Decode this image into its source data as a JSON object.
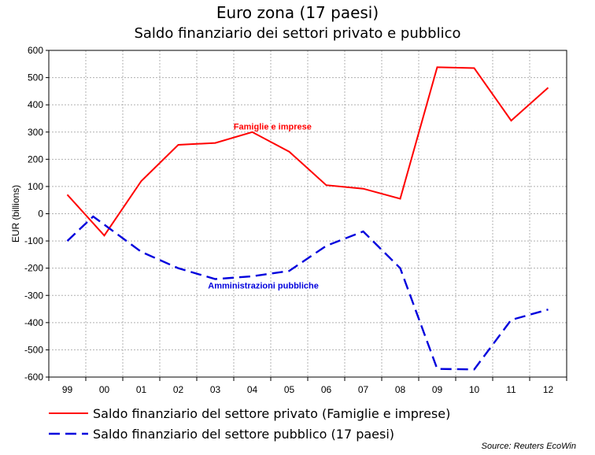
{
  "chart_data": {
    "type": "line",
    "title": "Euro zona (17 paesi)",
    "subtitle": "Saldo finanziario dei settori privato e pubblico",
    "ylabel": "EUR (billions)",
    "xlabel": "",
    "ylim": [
      -600,
      600
    ],
    "yticks": [
      600,
      500,
      400,
      300,
      200,
      100,
      0,
      -100,
      -200,
      -300,
      -400,
      -500,
      -600
    ],
    "categories": [
      "99",
      "00",
      "01",
      "02",
      "03",
      "04",
      "05",
      "06",
      "07",
      "08",
      "09",
      "10",
      "11",
      "12"
    ],
    "grid": true,
    "series": [
      {
        "name": "Saldo finanziario del settore privato (Famiglie e imprese)",
        "color": "#ff0000",
        "dash": "solid",
        "x": [
          0,
          1,
          2,
          3,
          4,
          5,
          6,
          7,
          8,
          9,
          10,
          11,
          12,
          13
        ],
        "values": [
          70,
          -80,
          120,
          253,
          260,
          300,
          228,
          105,
          92,
          55,
          538,
          535,
          342,
          463
        ]
      },
      {
        "name": "Saldo finanziario del settore pubblico (17 paesi)",
        "color": "#0000dd",
        "dash": "dashed",
        "x": [
          0,
          0.7,
          2,
          3,
          4,
          5,
          6,
          7,
          8,
          9,
          10,
          11,
          12,
          13
        ],
        "values": [
          -100,
          -10,
          -140,
          -200,
          -240,
          -230,
          -210,
          -118,
          -65,
          -200,
          -570,
          -572,
          -390,
          -352
        ]
      }
    ],
    "annotations": [
      {
        "text": "Famiglie e imprese",
        "x": 5.55,
        "y": 310,
        "color": "#ff0000"
      },
      {
        "text": "Amministrazioni pubbliche",
        "x": 5.3,
        "y": -275,
        "color": "#0000dd"
      }
    ]
  },
  "legend": {
    "private_label": "Saldo finanziario del settore privato (Famiglie e imprese)",
    "public_label": "Saldo finanziario del settore pubblico (17 paesi)"
  },
  "source": "Source: Reuters EcoWin"
}
